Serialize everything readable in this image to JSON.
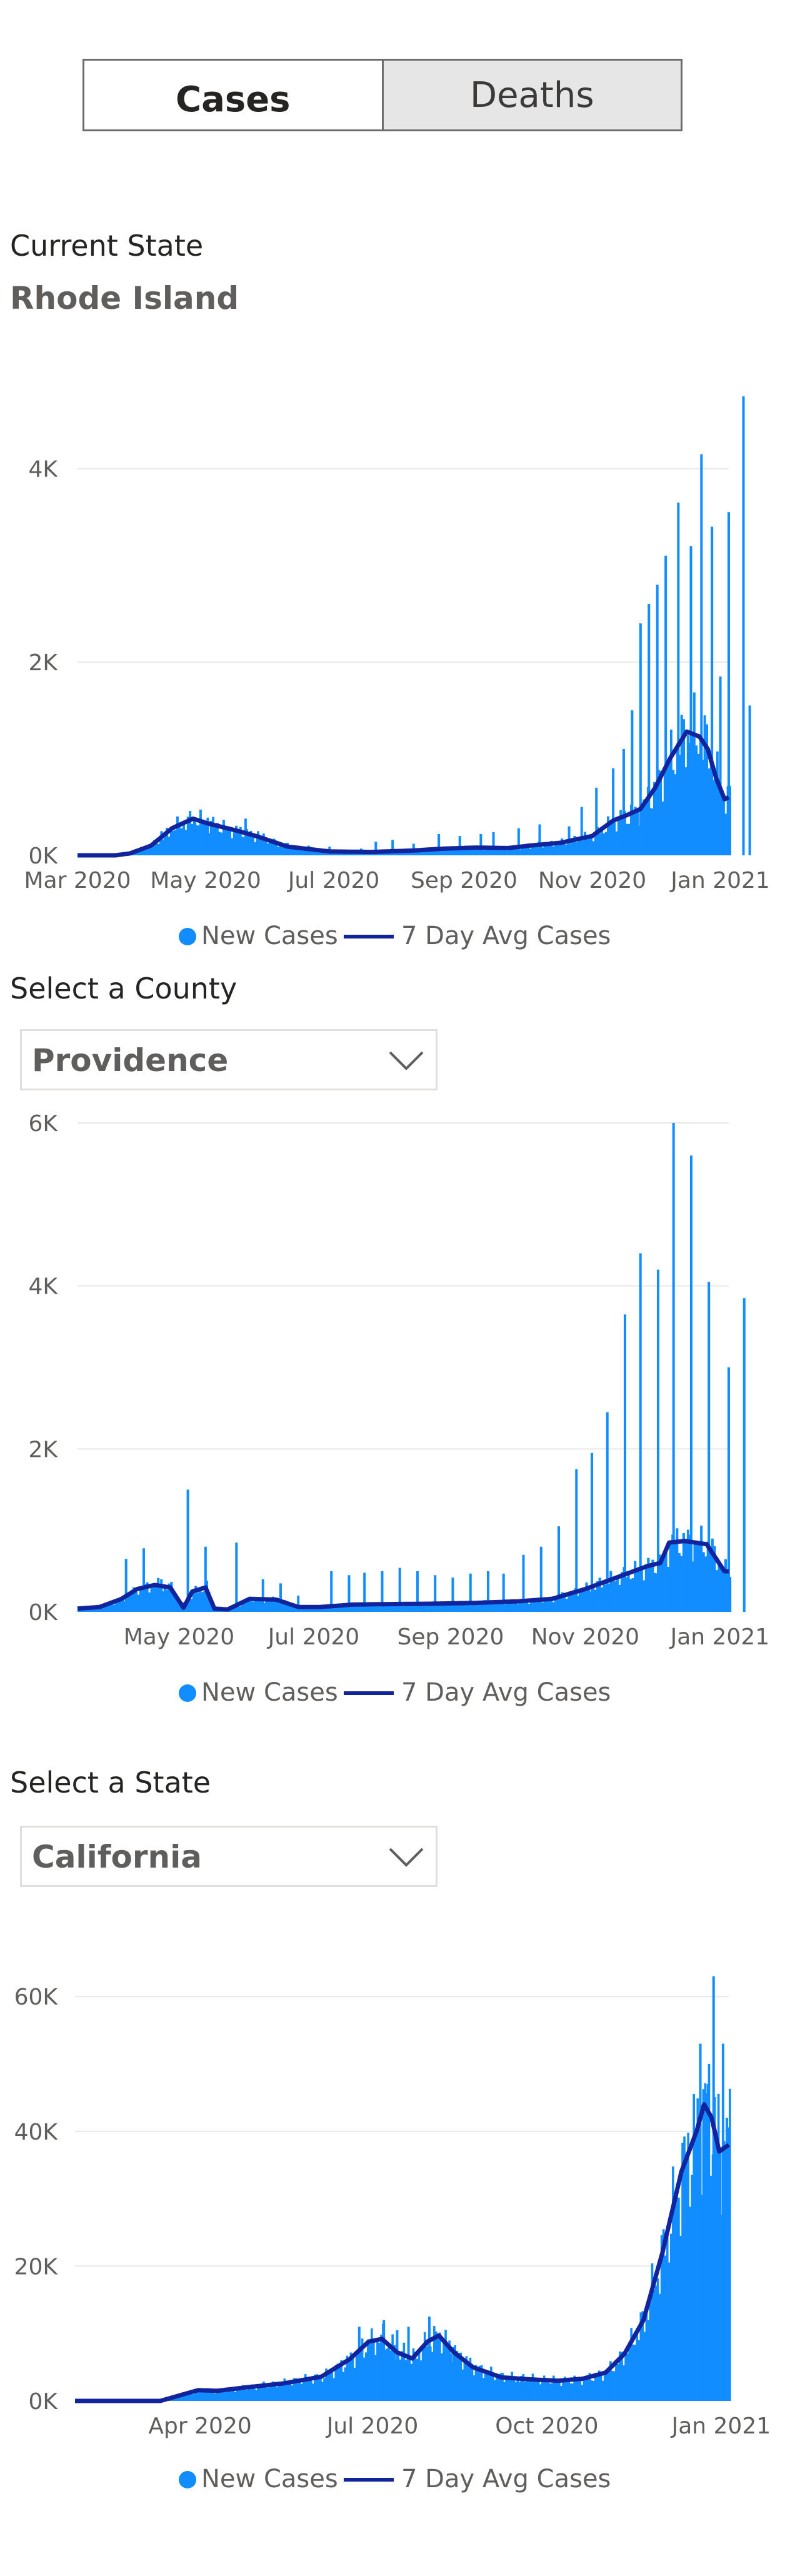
{
  "tabs": [
    {
      "label": "Cases",
      "active": true
    },
    {
      "label": "Deaths",
      "active": false
    }
  ],
  "state_section": {
    "caption": "Current State",
    "name": "Rhode Island"
  },
  "county_section": {
    "caption": "Select a County",
    "selected": "Providence"
  },
  "state_select": {
    "caption": "Select a State",
    "selected": "California"
  },
  "legend": {
    "bars": "New Cases",
    "line": "7 Day Avg Cases"
  },
  "colors": {
    "bars": "#118dff",
    "line": "#12239e",
    "grid": "#e8e8e8",
    "axis_text": "#605e5c"
  },
  "icons": {
    "dropdown": "chevron-down-icon"
  },
  "chart_data": [
    {
      "type": "bar",
      "start": "2020-03-01",
      "days": 310,
      "ylim": [
        0,
        4800
      ],
      "yticks": [
        0,
        2000,
        4000
      ],
      "ytick_labels": [
        "0K",
        "2K",
        "4K"
      ],
      "xtick_labels": [
        "Mar 2020",
        "May 2020",
        "Jul 2020",
        "Sep 2020",
        "Nov 2020",
        "Jan 2021"
      ],
      "xtick_dates": [
        "2020-03-01",
        "2020-05-01",
        "2020-07-01",
        "2020-09-01",
        "2020-11-01",
        "2021-01-01"
      ],
      "avg": [
        [
          0,
          0
        ],
        [
          18,
          0
        ],
        [
          25,
          20
        ],
        [
          35,
          100
        ],
        [
          45,
          280
        ],
        [
          55,
          380
        ],
        [
          62,
          330
        ],
        [
          75,
          260
        ],
        [
          85,
          200
        ],
        [
          100,
          90
        ],
        [
          120,
          40
        ],
        [
          140,
          35
        ],
        [
          160,
          50
        ],
        [
          175,
          70
        ],
        [
          190,
          80
        ],
        [
          205,
          75
        ],
        [
          215,
          100
        ],
        [
          230,
          130
        ],
        [
          245,
          200
        ],
        [
          255,
          360
        ],
        [
          262,
          420
        ],
        [
          268,
          480
        ],
        [
          275,
          700
        ],
        [
          282,
          1000
        ],
        [
          290,
          1280
        ],
        [
          296,
          1230
        ],
        [
          300,
          1100
        ],
        [
          304,
          800
        ],
        [
          308,
          580
        ],
        [
          312,
          620
        ],
        [
          316,
          880
        ],
        [
          320,
          900
        ],
        [
          324,
          1130
        ]
      ],
      "spikes": [
        [
          40,
          250
        ],
        [
          50,
          280
        ],
        [
          56,
          340
        ],
        [
          62,
          390
        ],
        [
          72,
          270
        ],
        [
          80,
          380
        ],
        [
          86,
          250
        ],
        [
          100,
          130
        ],
        [
          110,
          100
        ],
        [
          120,
          90
        ],
        [
          135,
          70
        ],
        [
          142,
          140
        ],
        [
          150,
          160
        ],
        [
          160,
          120
        ],
        [
          172,
          220
        ],
        [
          182,
          200
        ],
        [
          192,
          220
        ],
        [
          198,
          240
        ],
        [
          210,
          280
        ],
        [
          220,
          320
        ],
        [
          234,
          300
        ],
        [
          240,
          500
        ],
        [
          247,
          700
        ],
        [
          255,
          900
        ],
        [
          260,
          1100
        ],
        [
          264,
          1500
        ],
        [
          268,
          2400
        ],
        [
          272,
          2600
        ],
        [
          276,
          2800
        ],
        [
          280,
          3100
        ],
        [
          286,
          3650
        ],
        [
          292,
          3200
        ],
        [
          297,
          4150
        ],
        [
          302,
          3400
        ],
        [
          306,
          1850
        ],
        [
          310,
          3550
        ],
        [
          317,
          4750
        ],
        [
          320,
          1550
        ]
      ],
      "jitter": 0.35
    },
    {
      "type": "bar",
      "start": "2020-03-16",
      "days": 295,
      "ylim": [
        0,
        6000
      ],
      "yticks": [
        0,
        2000,
        4000,
        6000
      ],
      "ytick_labels": [
        "0K",
        "2K",
        "4K",
        "6K"
      ],
      "xtick_labels": [
        "May 2020",
        "Jul 2020",
        "Sep 2020",
        "Nov 2020",
        "Jan 2021"
      ],
      "xtick_dates": [
        "2020-05-01",
        "2020-07-01",
        "2020-09-01",
        "2020-11-01",
        "2021-01-01"
      ],
      "avg": [
        [
          0,
          40
        ],
        [
          10,
          60
        ],
        [
          20,
          160
        ],
        [
          27,
          280
        ],
        [
          35,
          330
        ],
        [
          42,
          300
        ],
        [
          48,
          50
        ],
        [
          52,
          250
        ],
        [
          58,
          300
        ],
        [
          62,
          40
        ],
        [
          68,
          30
        ],
        [
          78,
          160
        ],
        [
          90,
          150
        ],
        [
          100,
          60
        ],
        [
          110,
          60
        ],
        [
          125,
          90
        ],
        [
          140,
          95
        ],
        [
          160,
          100
        ],
        [
          180,
          110
        ],
        [
          200,
          130
        ],
        [
          215,
          160
        ],
        [
          230,
          280
        ],
        [
          240,
          380
        ],
        [
          250,
          480
        ],
        [
          258,
          560
        ],
        [
          264,
          600
        ],
        [
          268,
          850
        ],
        [
          275,
          870
        ],
        [
          285,
          830
        ],
        [
          293,
          500
        ],
        [
          300,
          480
        ],
        [
          304,
          560
        ]
      ],
      "spikes": [
        [
          22,
          650
        ],
        [
          30,
          780
        ],
        [
          38,
          400
        ],
        [
          50,
          1500
        ],
        [
          58,
          800
        ],
        [
          72,
          850
        ],
        [
          84,
          400
        ],
        [
          92,
          350
        ],
        [
          100,
          200
        ],
        [
          115,
          500
        ],
        [
          123,
          450
        ],
        [
          130,
          480
        ],
        [
          138,
          500
        ],
        [
          146,
          540
        ],
        [
          154,
          500
        ],
        [
          162,
          450
        ],
        [
          170,
          420
        ],
        [
          178,
          470
        ],
        [
          186,
          500
        ],
        [
          193,
          470
        ],
        [
          202,
          700
        ],
        [
          210,
          800
        ],
        [
          218,
          1050
        ],
        [
          226,
          1750
        ],
        [
          233,
          1950
        ],
        [
          240,
          2450
        ],
        [
          248,
          3650
        ],
        [
          255,
          4400
        ],
        [
          263,
          4200
        ],
        [
          270,
          6000
        ],
        [
          278,
          5600
        ],
        [
          286,
          4050
        ],
        [
          295,
          3000
        ],
        [
          302,
          3850
        ]
      ],
      "jitter": 0.3
    },
    {
      "type": "bar",
      "start": "2020-01-26",
      "days": 345,
      "ylim": [
        0,
        64000
      ],
      "yticks": [
        0,
        20000,
        40000,
        60000
      ],
      "ytick_labels": [
        "0K",
        "20K",
        "40K",
        "60K"
      ],
      "xtick_labels": [
        "Apr 2020",
        "Jul 2020",
        "Oct 2020",
        "Jan 2021"
      ],
      "xtick_dates": [
        "2020-04-01",
        "2020-07-01",
        "2020-10-01",
        "2021-01-01"
      ],
      "avg": [
        [
          0,
          0
        ],
        [
          45,
          0
        ],
        [
          55,
          800
        ],
        [
          65,
          1600
        ],
        [
          75,
          1500
        ],
        [
          90,
          2000
        ],
        [
          110,
          2600
        ],
        [
          130,
          3600
        ],
        [
          145,
          6200
        ],
        [
          155,
          8800
        ],
        [
          162,
          9200
        ],
        [
          170,
          7200
        ],
        [
          178,
          6300
        ],
        [
          186,
          8800
        ],
        [
          192,
          9700
        ],
        [
          200,
          7200
        ],
        [
          210,
          5000
        ],
        [
          225,
          3500
        ],
        [
          240,
          3200
        ],
        [
          255,
          3000
        ],
        [
          268,
          3300
        ],
        [
          280,
          4200
        ],
        [
          290,
          7000
        ],
        [
          300,
          12000
        ],
        [
          310,
          22000
        ],
        [
          320,
          34000
        ],
        [
          328,
          40000
        ],
        [
          332,
          44000
        ],
        [
          336,
          42000
        ],
        [
          340,
          37000
        ],
        [
          345,
          38000
        ]
      ],
      "spikes": [
        [
          150,
          11000
        ],
        [
          163,
          12000
        ],
        [
          170,
          10500
        ],
        [
          176,
          11000
        ],
        [
          187,
          12500
        ],
        [
          200,
          8000
        ],
        [
          305,
          14000
        ],
        [
          318,
          26000
        ],
        [
          326,
          33000
        ],
        [
          330,
          53000
        ],
        [
          334,
          47000
        ],
        [
          337,
          63000
        ],
        [
          340,
          30000
        ],
        [
          342,
          53000
        ],
        [
          344,
          42000
        ]
      ],
      "jitter": 0.28
    }
  ]
}
